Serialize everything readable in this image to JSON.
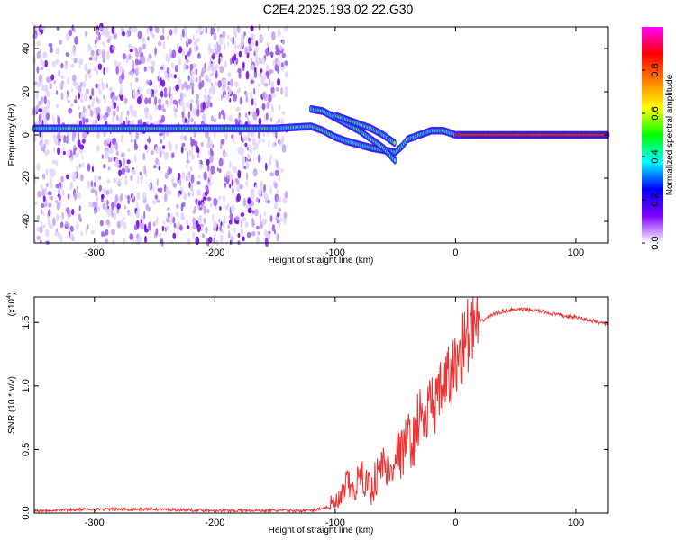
{
  "figure": {
    "title": "C2E4.2025.193.02.22.G30"
  },
  "chart_data": [
    {
      "type": "heatmap",
      "xlabel": "Height of straight line (km)",
      "ylabel": "Frequency (Hz)",
      "xlim": [
        -350,
        127
      ],
      "ylim": [
        -50,
        50
      ],
      "xticks": [
        -300,
        -200,
        -100,
        0,
        100
      ],
      "yticks": [
        -40,
        -20,
        0,
        20,
        40
      ],
      "colorbar": {
        "label": "Normalized spectral amplitude",
        "range": [
          0.0,
          1.0
        ],
        "ticks": [
          0.0,
          0.2,
          0.4,
          0.6,
          0.8
        ],
        "colormap": [
          "#ffffff",
          "#7f00ff",
          "#0000ff",
          "#00ffff",
          "#00ff00",
          "#ffff00",
          "#ff7f00",
          "#ff0000",
          "#ff00ff"
        ]
      },
      "ridges": [
        {
          "x": [
            -350,
            -300,
            -250,
            -200,
            -150,
            -120,
            -110,
            -100,
            -90,
            -70,
            -50,
            -44,
            -40,
            -30,
            -20,
            -10,
            0,
            20,
            60,
            127
          ],
          "y": [
            3,
            3,
            3,
            3,
            3,
            4,
            2,
            -1,
            -3,
            -6,
            -8,
            -5,
            -2,
            0,
            2,
            2,
            0,
            0,
            0,
            0
          ]
        },
        {
          "x": [
            -120,
            -110,
            -100,
            -90,
            -80,
            -70,
            -60,
            -50
          ],
          "y": [
            12,
            11,
            8,
            5,
            2,
            -2,
            -6,
            -12
          ]
        },
        {
          "x": [
            -100,
            -90,
            -80,
            -70,
            -60,
            -50
          ],
          "y": [
            9,
            7,
            5,
            3,
            0,
            -4
          ]
        }
      ]
    },
    {
      "type": "line",
      "xlabel": "Height of straight line (km)",
      "ylabel": "SNR (10 * v/v)",
      "y_multiplier": "(x10",
      "y_multiplier_exp": "4",
      "y_multiplier_close": ")",
      "xlim": [
        -350,
        127
      ],
      "ylim": [
        0,
        1.7
      ],
      "xticks": [
        -300,
        -200,
        -100,
        0,
        100
      ],
      "yticks": [
        "0.0",
        "0.5",
        "1.0",
        "1.5"
      ],
      "series": [
        {
          "color": "#ee3333",
          "x": [
            -350,
            -300,
            -250,
            -200,
            -150,
            -120,
            -105,
            -95,
            -90,
            -85,
            -80,
            -70,
            -60,
            -55,
            -50,
            -45,
            -40,
            -35,
            -30,
            -25,
            -20,
            -15,
            -10,
            -5,
            0,
            5,
            10,
            20,
            30,
            40,
            50,
            60,
            70,
            80,
            90,
            100,
            110,
            120,
            127
          ],
          "y": [
            0.02,
            0.03,
            0.03,
            0.02,
            0.02,
            0.02,
            0.05,
            0.1,
            0.25,
            0.15,
            0.3,
            0.2,
            0.4,
            0.3,
            0.5,
            0.45,
            0.6,
            0.55,
            0.8,
            0.7,
            0.9,
            0.85,
            1.0,
            1.05,
            1.15,
            1.3,
            1.4,
            1.5,
            1.56,
            1.59,
            1.6,
            1.6,
            1.59,
            1.57,
            1.55,
            1.54,
            1.52,
            1.5,
            1.49
          ]
        }
      ]
    }
  ]
}
